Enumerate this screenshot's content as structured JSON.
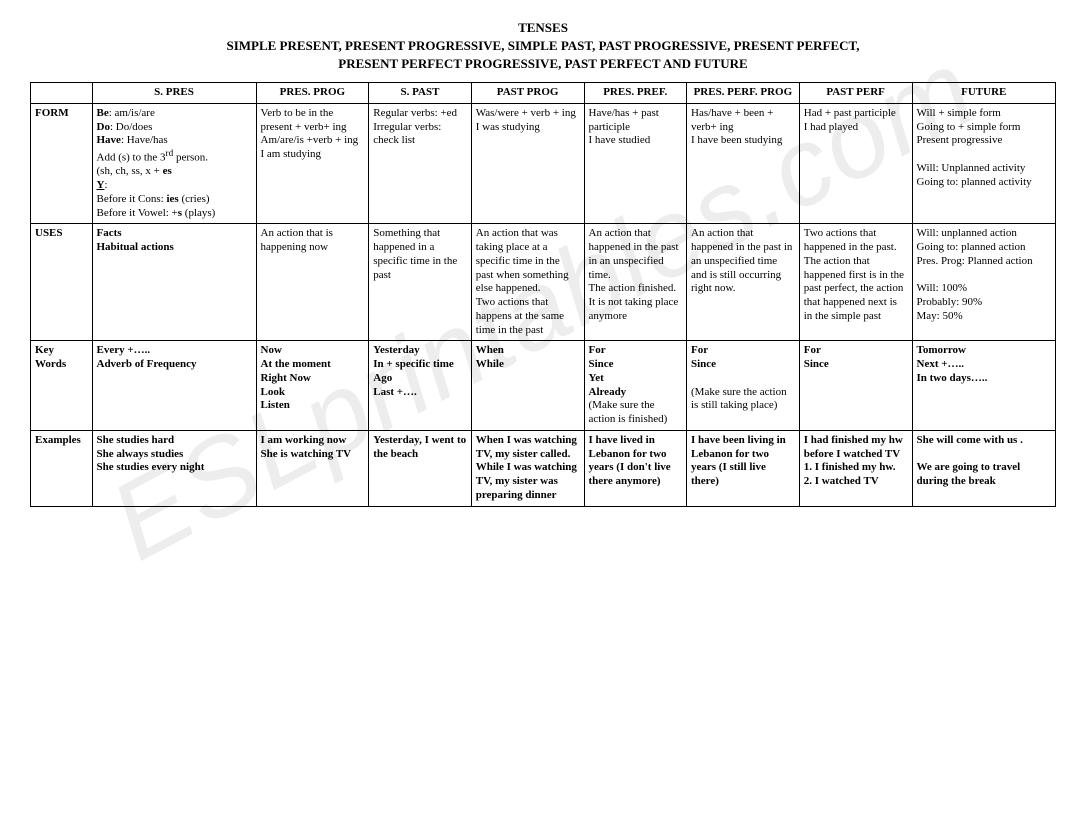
{
  "title": "TENSES",
  "subtitle1": "SIMPLE PRESENT, PRESENT PROGRESSIVE, SIMPLE PAST, PAST PROGRESSIVE, PRESENT PERFECT,",
  "subtitle2": "PRESENT PERFECT PROGRESSIVE, PAST PERFECT AND FUTURE",
  "watermark": "ESLprintables.com",
  "columns": [
    "",
    "S. PRES",
    "PRES. PROG",
    "S. PAST",
    "PAST PROG",
    "PRES. PREF.",
    "PRES. PERF. PROG",
    "PAST PERF",
    "FUTURE"
  ],
  "rows": {
    "form": {
      "label": "FORM",
      "spres": "<span class='b'>Be</span>: am/is/are<br><span class='b'>Do</span>: Do/does<br><span class='b'>Have</span>: Have/has<br>Add (s) to the 3<sup>rd</sup> person.<br>(sh, ch, ss, x + <span class='b'>es</span><br><span class='b u'>Y</span>:<br>Before it Cons: <span class='b'>ies</span> (cries)<br>Before it Vowel: +<span class='b'>s</span> (plays)",
      "presprog": "Verb to be in the present + verb+ ing<br>Am/are/is +verb + ing<br>I am studying",
      "spast": "Regular verbs: +ed<br>Irregular verbs: check list",
      "pastprog": "Was/were + verb + ing<br>I was studying",
      "prespref": "Have/has + past participle<br>I have studied",
      "presperfprog": "Has/have + been + verb+ ing<br>I have been studying",
      "pastperf": "Had + past participle<br>I had played",
      "future": "Will + simple form<br>Going to + simple form<br>Present progressive<br><br>Will: Unplanned activity<br>Going to: planned activity"
    },
    "uses": {
      "label": "USES",
      "spres": "<span class='b'>Facts<br>Habitual actions</span>",
      "presprog": "An action that is happening now",
      "spast": "Something that happened in a specific time in the past",
      "pastprog": "An action that was taking place at a specific time in the past when something else happened.<br>Two actions that happens at the same time in the past",
      "prespref": "An action that happened in the past in an unspecified time.<br>The action finished. It is not taking place anymore",
      "presperfprog": "An action that happened in the past in an unspecified time and is still occurring right now.",
      "pastperf": "Two actions that happened in the past.<br>The action that happened first is in the past perfect, the action that happened next is in the simple past",
      "future": "Will: unplanned action<br>Going to: planned action<br>Pres. Prog: Planned action<br><br>Will: 100%<br>Probably: 90%<br>May: 50%"
    },
    "keywords": {
      "label": "Key Words",
      "spres": "<span class='b'>Every +…..<br>Adverb of Frequency</span>",
      "presprog": "<span class='b'>Now<br>At the moment<br>Right Now<br>Look<br>Listen</span>",
      "spast": "<span class='b'>Yesterday<br>In + specific time<br>Ago<br>Last +….</span>",
      "pastprog": "<span class='b'>When<br>While</span>",
      "prespref": "<span class='b'>For<br>Since<br>Yet<br>Already</span><br> (Make sure the action is finished)",
      "presperfprog": "<span class='b'>For<br>Since</span><br><br>(Make sure the action is still taking place)",
      "pastperf": "<span class='b'>For<br>Since</span>",
      "future": "<span class='b'>Tomorrow<br>Next +…..<br>In two days…..</span>"
    },
    "examples": {
      "label": "Examples",
      "spres": "<span class='b'>She studies hard<br>She always studies<br>She studies every night</span>",
      "presprog": "<span class='b'>I am working now<br>She is watching TV</span>",
      "spast": "<span class='b'>Yesterday, I went to the beach</span>",
      "pastprog": "<span class='b'>When I was watching TV, my sister called.<br>While I was watching TV, my sister was preparing dinner</span>",
      "prespref": "<span class='b'>I have lived in Lebanon for two years (I don't live there anymore)</span>",
      "presperfprog": "<span class='b'>I have been living in Lebanon for two years (I still live there)</span>",
      "pastperf": "<span class='b'>I had finished my hw before I watched TV<br>1. I finished my hw.<br>2. I watched TV</span>",
      "future": "<span class='b'>She will come with us .<br><br>We are going to travel during the break</span>"
    }
  },
  "styling": {
    "font_family": "Times New Roman",
    "body_fontsize": 12,
    "cell_fontsize": 11,
    "title_fontsize": 13,
    "border_color": "#000000",
    "background_color": "#ffffff",
    "text_color": "#000000",
    "watermark_color": "rgba(0,0,0,0.07)",
    "watermark_fontsize": 110,
    "watermark_rotate_deg": -28,
    "col_widths_pct": [
      6,
      16,
      11,
      10,
      11,
      10,
      11,
      11,
      14
    ]
  }
}
